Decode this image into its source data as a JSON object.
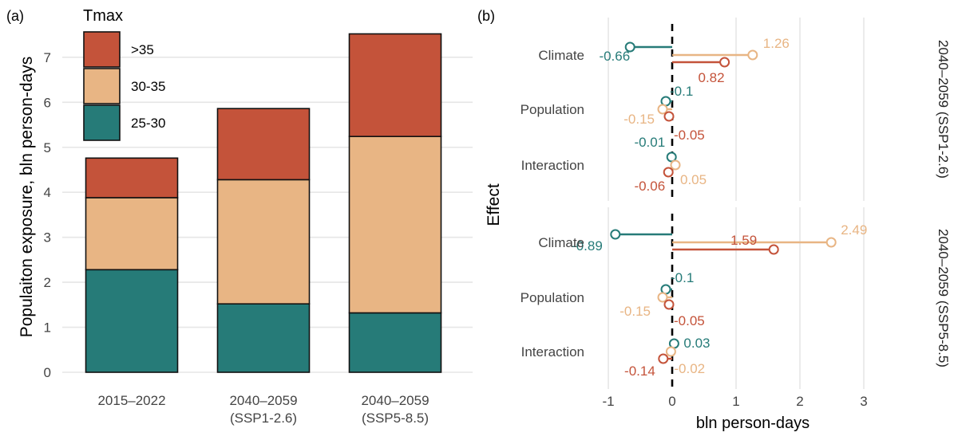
{
  "chart_data": [
    {
      "panel_label": "(a)",
      "type": "bar",
      "stacked": true,
      "ylabel": "Populaiton exposure, bln person-days",
      "ylim": [
        0,
        7.6
      ],
      "yticks": [
        "0",
        "1",
        "2",
        "3",
        "4",
        "5",
        "6",
        "7"
      ],
      "grid": true,
      "categories": [
        [
          "2015–2022"
        ],
        [
          "2040–2059",
          "(SSP1-2.6)"
        ],
        [
          "2040–2059",
          "(SSP5-8.5)"
        ]
      ],
      "legend": {
        "title": "Tmax",
        "placement": "top-left",
        "items": [
          {
            "label": ">35",
            "color": "#c4533a"
          },
          {
            "label": "30-35",
            "color": "#e8b584"
          },
          {
            "label": "25-30",
            "color": "#267b78"
          }
        ]
      },
      "series": [
        {
          "name": "25-30",
          "color": "#267b78",
          "values": [
            2.28,
            1.52,
            1.32
          ]
        },
        {
          "name": "30-35",
          "color": "#e8b584",
          "values": [
            1.6,
            2.76,
            3.92
          ]
        },
        {
          "name": ">35",
          "color": "#c4533a",
          "values": [
            0.88,
            1.58,
            2.28
          ]
        }
      ]
    },
    {
      "panel_label": "(b)",
      "type": "lollipop",
      "xlabel": "bln person-days",
      "ylabel": "Effect",
      "xlim": [
        -1.2,
        3.3
      ],
      "xticks": [
        "-1",
        "0",
        "1",
        "2",
        "3"
      ],
      "grid": true,
      "effects": [
        "Climate",
        "Population",
        "Interaction"
      ],
      "series_colors": {
        "25-30": "#267b78",
        "30-35": "#e8b584",
        ">35": "#c4533a"
      },
      "facets": [
        {
          "label": "2040–2059 (SSP1-2.6)",
          "rows": [
            {
              "effect": "Climate",
              "points": [
                {
                  "series": "25-30",
                  "value": -0.66,
                  "label": "-0.66"
                },
                {
                  "series": "30-35",
                  "value": 1.26,
                  "label": "1.26"
                },
                {
                  "series": ">35",
                  "value": 0.82,
                  "label": "0.82"
                }
              ]
            },
            {
              "effect": "Population",
              "points": [
                {
                  "series": "25-30",
                  "value": -0.1,
                  "label": "-0.1"
                },
                {
                  "series": "30-35",
                  "value": -0.15,
                  "label": "-0.15"
                },
                {
                  "series": ">35",
                  "value": -0.05,
                  "label": "-0.05"
                }
              ]
            },
            {
              "effect": "Interaction",
              "points": [
                {
                  "series": "25-30",
                  "value": -0.01,
                  "label": "-0.01"
                },
                {
                  "series": "30-35",
                  "value": 0.05,
                  "label": "0.05"
                },
                {
                  "series": ">35",
                  "value": -0.06,
                  "label": "-0.06"
                }
              ]
            }
          ]
        },
        {
          "label": "2040–2059 (SSP5-8.5)",
          "rows": [
            {
              "effect": "Climate",
              "points": [
                {
                  "series": "25-30",
                  "value": -0.89,
                  "label": "-0.89"
                },
                {
                  "series": "30-35",
                  "value": 2.49,
                  "label": "2.49"
                },
                {
                  "series": ">35",
                  "value": 1.59,
                  "label": "1.59"
                }
              ]
            },
            {
              "effect": "Population",
              "points": [
                {
                  "series": "25-30",
                  "value": -0.1,
                  "label": "-0.1"
                },
                {
                  "series": "30-35",
                  "value": -0.15,
                  "label": "-0.15"
                },
                {
                  "series": ">35",
                  "value": -0.05,
                  "label": "-0.05"
                }
              ]
            },
            {
              "effect": "Interaction",
              "points": [
                {
                  "series": "25-30",
                  "value": 0.03,
                  "label": "0.03"
                },
                {
                  "series": "30-35",
                  "value": -0.02,
                  "label": "-0.02"
                },
                {
                  "series": ">35",
                  "value": -0.14,
                  "label": "-0.14"
                }
              ]
            }
          ]
        }
      ]
    }
  ]
}
